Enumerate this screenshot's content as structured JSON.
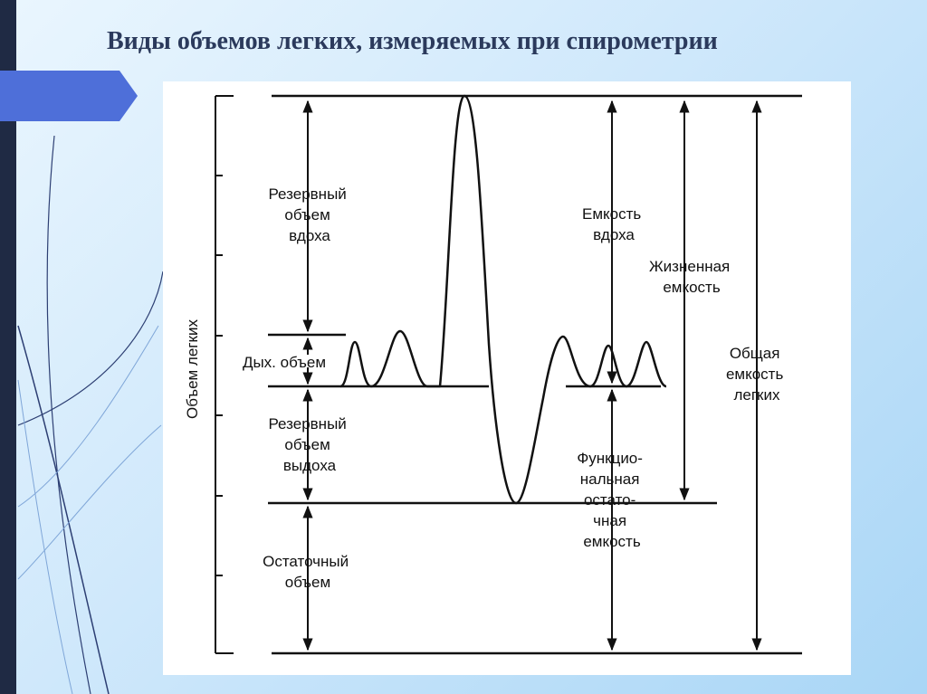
{
  "slide": {
    "title": "Виды объемов легких, измеряемых при спирометрии"
  },
  "diagram": {
    "axis_label": "Объем легких",
    "labels": {
      "irv": [
        "Резервный",
        "объем",
        "вдоха"
      ],
      "tv": [
        "Дых. объем"
      ],
      "erv": [
        "Резервный",
        "объем",
        "выдоха"
      ],
      "rv": [
        "Остаточный",
        "объем"
      ],
      "ic": [
        "Емкость",
        "вдоха"
      ],
      "vc": [
        "Жизненная",
        "емкость"
      ],
      "tlc": [
        "Общая",
        "емкость",
        "легких"
      ],
      "frc": [
        "Функцио-",
        "нальная",
        "остато-",
        "чная",
        "емкость"
      ]
    }
  },
  "colors": {
    "left_bar": "#1f2a44",
    "accent": "#4e6fd9",
    "ink": "#111111",
    "title": "#2b3a5c"
  }
}
